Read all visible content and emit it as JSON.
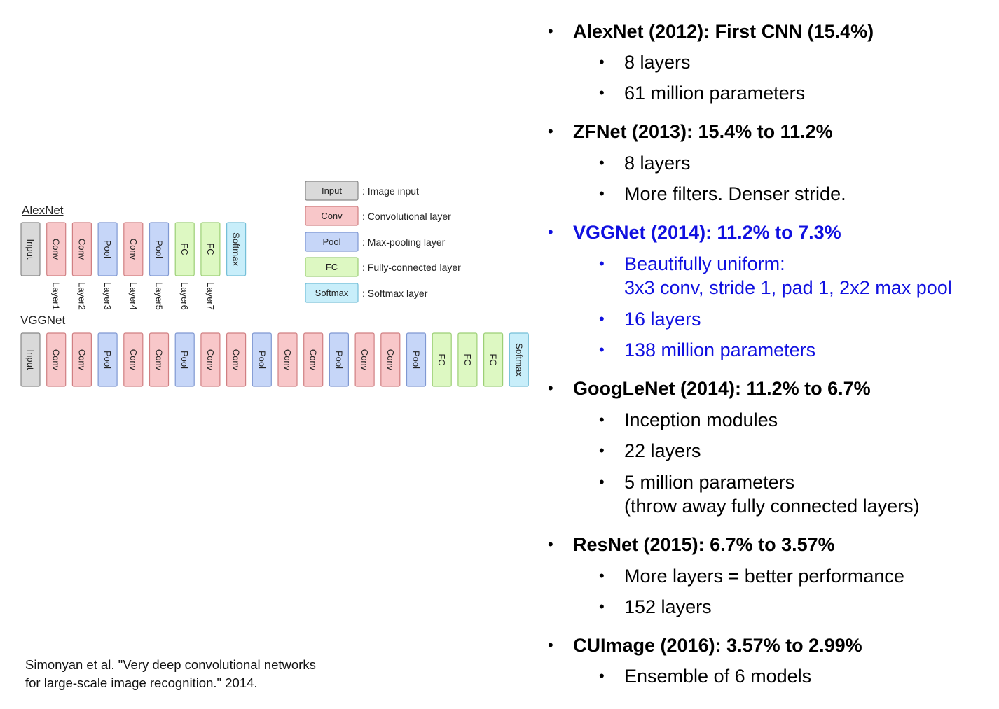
{
  "diagram": {
    "alexnet_title": "AlexNet",
    "vggnet_title": "VGGNet",
    "colors": {
      "input": "#d9d9d9",
      "input_stroke": "#888888",
      "conv": "#f8c7c9",
      "conv_stroke": "#d07f82",
      "pool": "#c6d6f8",
      "pool_stroke": "#7f98d2",
      "fc": "#ddf8c2",
      "fc_stroke": "#9ccf76",
      "softmax": "#c8eefa",
      "softmax_stroke": "#74bfd8"
    },
    "alexnet_blocks": [
      {
        "type": "input",
        "label": "Input"
      },
      {
        "type": "conv",
        "label": "Conv"
      },
      {
        "type": "conv",
        "label": "Conv"
      },
      {
        "type": "pool",
        "label": "Pool"
      },
      {
        "type": "conv",
        "label": "Conv"
      },
      {
        "type": "pool",
        "label": "Pool"
      },
      {
        "type": "fc",
        "label": "FC"
      },
      {
        "type": "fc",
        "label": "FC"
      },
      {
        "type": "softmax",
        "label": "Softmax"
      }
    ],
    "alexnet_layer_labels": [
      "Layer1",
      "Layer2",
      "Layer3",
      "Layer4",
      "Layer5",
      "Layer6",
      "Layer7"
    ],
    "vggnet_blocks": [
      {
        "type": "input",
        "label": "Input"
      },
      {
        "type": "conv",
        "label": "Conv"
      },
      {
        "type": "conv",
        "label": "Conv"
      },
      {
        "type": "pool",
        "label": "Pool"
      },
      {
        "type": "conv",
        "label": "Conv"
      },
      {
        "type": "conv",
        "label": "Conv"
      },
      {
        "type": "pool",
        "label": "Pool"
      },
      {
        "type": "conv",
        "label": "Conv"
      },
      {
        "type": "conv",
        "label": "Conv"
      },
      {
        "type": "pool",
        "label": "Pool"
      },
      {
        "type": "conv",
        "label": "Conv"
      },
      {
        "type": "conv",
        "label": "Conv"
      },
      {
        "type": "pool",
        "label": "Pool"
      },
      {
        "type": "conv",
        "label": "Conv"
      },
      {
        "type": "conv",
        "label": "Conv"
      },
      {
        "type": "pool",
        "label": "Pool"
      },
      {
        "type": "fc",
        "label": "FC"
      },
      {
        "type": "fc",
        "label": "FC"
      },
      {
        "type": "fc",
        "label": "FC"
      },
      {
        "type": "softmax",
        "label": "Softmax"
      }
    ],
    "legend": [
      {
        "type": "input",
        "label": "Input",
        "desc": ": Image input"
      },
      {
        "type": "conv",
        "label": "Conv",
        "desc": ": Convolutional layer"
      },
      {
        "type": "pool",
        "label": "Pool",
        "desc": ": Max-pooling layer"
      },
      {
        "type": "fc",
        "label": "FC",
        "desc": ": Fully-connected layer"
      },
      {
        "type": "softmax",
        "label": "Softmax",
        "desc": ": Softmax layer"
      }
    ]
  },
  "citation": {
    "line1": "Simonyan et al. \"Very deep convolutional networks",
    "line2": "for large-scale image recognition.\" 2014."
  },
  "bullets": {
    "bullet_glyph": "•",
    "alexnet": {
      "title": "AlexNet (2012): First CNN (15.4%)",
      "items": [
        "8 layers",
        "61 million parameters"
      ]
    },
    "zfnet": {
      "title": "ZFNet (2013): 15.4% to 11.2%",
      "items": [
        "8 layers",
        "More filters. Denser stride."
      ]
    },
    "vggnet": {
      "title": "VGGNet (2014): 11.2% to 7.3%",
      "items": [
        "Beautifully uniform:",
        "3x3 conv, stride 1, pad 1, 2x2 max pool",
        "16 layers",
        "138 million parameters"
      ]
    },
    "googlenet": {
      "title": "GoogLeNet (2014): 11.2% to 6.7%",
      "items": [
        "Inception modules",
        "22 layers",
        "5 million parameters",
        "(throw away fully connected layers)"
      ]
    },
    "resnet": {
      "title": "ResNet (2015): 6.7% to 3.57%",
      "items": [
        "More layers = better performance",
        "152 layers"
      ]
    },
    "cuimage": {
      "title": "CUImage (2016): 3.57% to 2.99%",
      "items": [
        "Ensemble of 6 models"
      ]
    },
    "highlight_color": "#1010e0"
  }
}
